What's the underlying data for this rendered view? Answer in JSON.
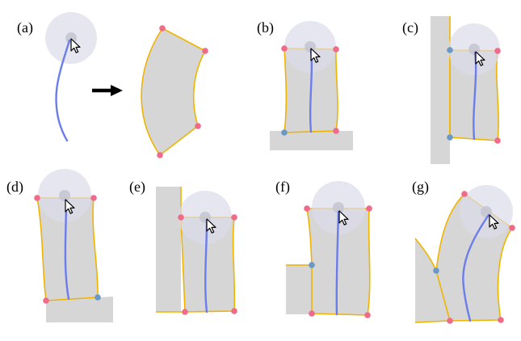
{
  "panels": [
    {
      "id": "a",
      "label": "(a)"
    },
    {
      "id": "b",
      "label": "(b)"
    },
    {
      "id": "c",
      "label": "(c)"
    },
    {
      "id": "d",
      "label": "(d)"
    },
    {
      "id": "e",
      "label": "(e)"
    },
    {
      "id": "f",
      "label": "(f)"
    },
    {
      "id": "g",
      "label": "(g)"
    }
  ],
  "colors": {
    "fill": "#d6d6d6",
    "outline": "#f0b400",
    "stroke": "#6b7dea",
    "vertex_pink": "#f06a8a",
    "vertex_blue": "#6a98c8"
  }
}
